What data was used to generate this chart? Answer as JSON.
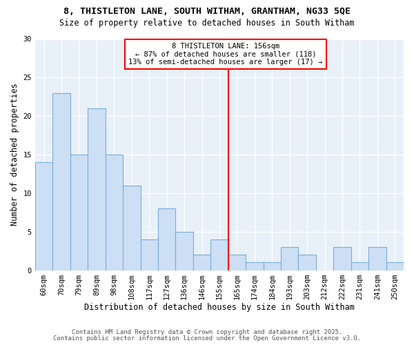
{
  "title1": "8, THISTLETON LANE, SOUTH WITHAM, GRANTHAM, NG33 5QE",
  "title2": "Size of property relative to detached houses in South Witham",
  "xlabel": "Distribution of detached houses by size in South Witham",
  "ylabel": "Number of detached properties",
  "categories": [
    "60sqm",
    "70sqm",
    "79sqm",
    "89sqm",
    "98sqm",
    "108sqm",
    "117sqm",
    "127sqm",
    "136sqm",
    "146sqm",
    "155sqm",
    "165sqm",
    "174sqm",
    "184sqm",
    "193sqm",
    "203sqm",
    "212sqm",
    "222sqm",
    "231sqm",
    "241sqm",
    "250sqm"
  ],
  "values": [
    14,
    23,
    15,
    21,
    15,
    11,
    4,
    8,
    5,
    2,
    4,
    2,
    1,
    1,
    3,
    2,
    0,
    3,
    1,
    3,
    1
  ],
  "bar_color": "#ccdff5",
  "bar_edge_color": "#7aadda",
  "reference_line_x": 10.5,
  "reference_label": "8 THISTLETON LANE: 156sqm",
  "annotation_line1": "← 87% of detached houses are smaller (118)",
  "annotation_line2": "13% of semi-detached houses are larger (17) →",
  "ylim": [
    0,
    30
  ],
  "yticks": [
    0,
    5,
    10,
    15,
    20,
    25,
    30
  ],
  "footnote1": "Contains HM Land Registry data © Crown copyright and database right 2025.",
  "footnote2": "Contains public sector information licensed under the Open Government Licence v3.0.",
  "bg_color": "#ffffff",
  "plot_bg_color": "#e8f0f8",
  "grid_color": "#ffffff",
  "title_fontsize": 9.5,
  "subtitle_fontsize": 8.5,
  "axis_label_fontsize": 8.5,
  "tick_fontsize": 7.5,
  "footnote_fontsize": 6.5,
  "annotation_fontsize": 7.5
}
